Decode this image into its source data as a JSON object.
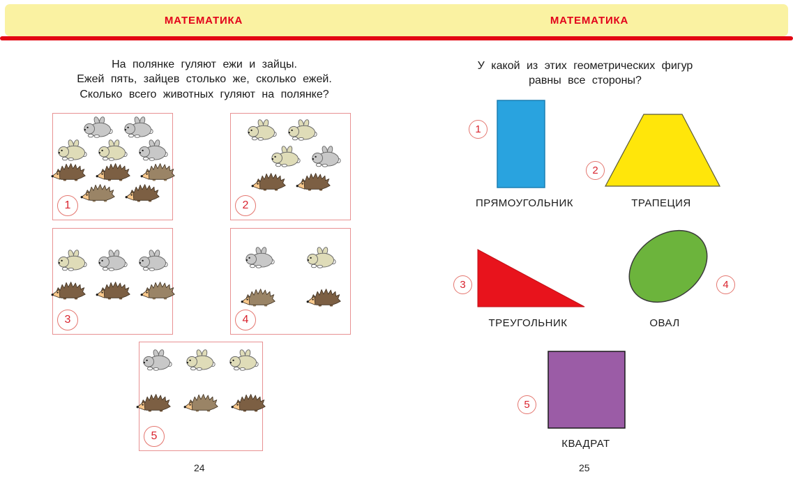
{
  "header": {
    "left_title": "МАТЕМАТИКА",
    "right_title": "МАТЕМАТИКА",
    "band_color": "#FAF2A2",
    "stripe_color": "#E30613",
    "title_color": "#E2001A"
  },
  "left_page": {
    "problem_lines": [
      "На полянке гуляют ежи и зайцы.",
      "Ежей пять, зайцев столько же, сколько ежей.",
      "Сколько всего животных гуляют на полянке?"
    ],
    "page_number": "24",
    "boxes": [
      {
        "number": "1",
        "rows": [
          [
            "rabbit_gray",
            "rabbit_gray"
          ],
          [
            "rabbit_beige",
            "rabbit_beige",
            "rabbit_gray"
          ],
          [
            "hedgehog_brown",
            "hedgehog_brown",
            "hedgehog_tan"
          ],
          [
            "hedgehog_tan",
            "hedgehog_brown"
          ]
        ]
      },
      {
        "number": "2",
        "rows": [
          [
            "rabbit_beige",
            "rabbit_beige"
          ],
          [
            "rabbit_beige",
            "rabbit_gray"
          ],
          [
            "hedgehog_brown",
            "hedgehog_brown"
          ]
        ]
      },
      {
        "number": "3",
        "rows": [
          [
            "rabbit_beige",
            "rabbit_gray",
            "rabbit_gray"
          ],
          [
            "hedgehog_brown",
            "hedgehog_brown",
            "hedgehog_tan"
          ]
        ]
      },
      {
        "number": "4",
        "rows": [
          [
            "rabbit_gray",
            "rabbit_beige"
          ],
          [
            "hedgehog_tan",
            "hedgehog_brown"
          ]
        ]
      },
      {
        "number": "5",
        "rows": [
          [
            "rabbit_gray",
            "rabbit_beige",
            "rabbit_beige"
          ],
          [
            "hedgehog_brown",
            "hedgehog_tan",
            "hedgehog_brown"
          ]
        ]
      }
    ]
  },
  "right_page": {
    "question_lines": [
      "У какой из этих геометрических фигур",
      "равны все стороны?"
    ],
    "page_number": "25",
    "shapes": [
      {
        "number": "1",
        "label": "ПРЯМОУГОЛЬНИК",
        "type": "rectangle",
        "color": "#29A3DF"
      },
      {
        "number": "2",
        "label": "ТРАПЕЦИЯ",
        "type": "trapezoid",
        "color": "#FFE60A"
      },
      {
        "number": "3",
        "label": "ТРЕУГОЛЬНИК",
        "type": "triangle",
        "color": "#E8131C"
      },
      {
        "number": "4",
        "label": "ОВАЛ",
        "type": "oval",
        "color": "#6CB43C"
      },
      {
        "number": "5",
        "label": "КВАДРАТ",
        "type": "square",
        "color": "#9B5CA6"
      }
    ]
  },
  "animal_colors": {
    "rabbit_gray": "#C8C8C8",
    "rabbit_beige": "#DFDCB8",
    "hedgehog_brown": "#7C5F43",
    "hedgehog_tan": "#9A8466",
    "hedgehog_face": "#F8C88C"
  },
  "badge_color": "#D9232E"
}
